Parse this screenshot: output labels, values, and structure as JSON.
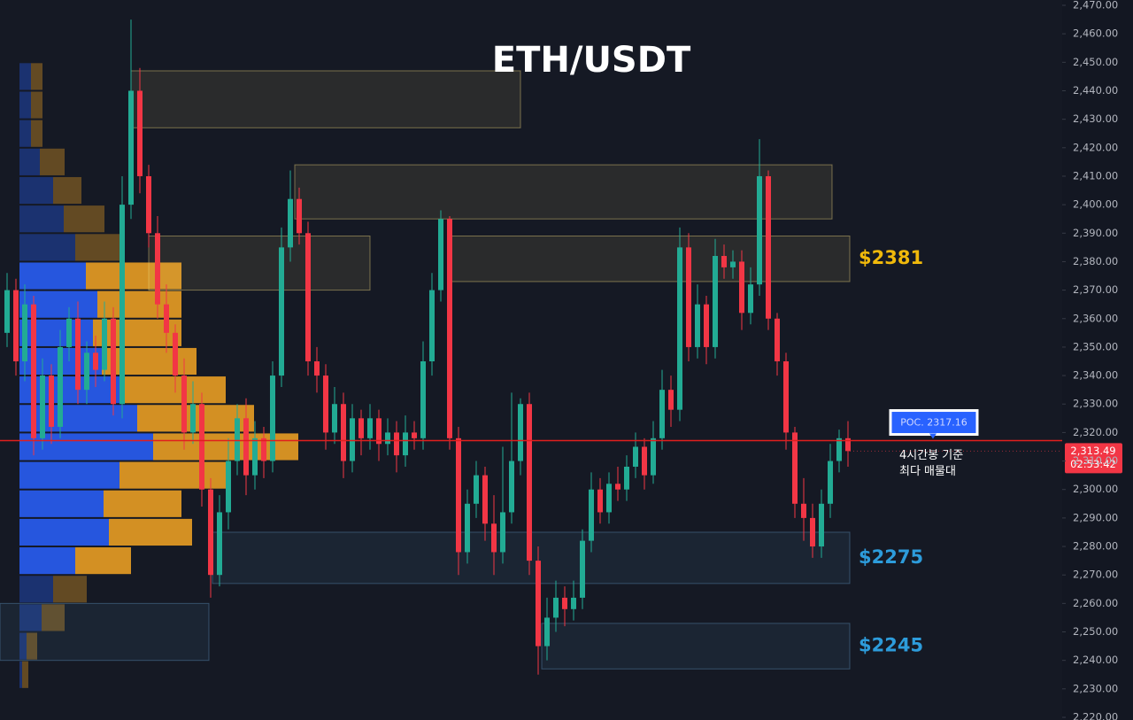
{
  "chart_data": {
    "type": "candlestick",
    "title": "ETH/USDT",
    "ylim": [
      2220,
      2470
    ],
    "yticks": [
      {
        "value": 2220,
        "label": "2,220.00"
      },
      {
        "value": 2230,
        "label": "2,230.00"
      },
      {
        "value": 2240,
        "label": "2,240.00"
      },
      {
        "value": 2250,
        "label": "2,250.00"
      },
      {
        "value": 2260,
        "label": "2,260.00"
      },
      {
        "value": 2270,
        "label": "2,270.00"
      },
      {
        "value": 2280,
        "label": "2,280.00"
      },
      {
        "value": 2290,
        "label": "2,290.00"
      },
      {
        "value": 2300,
        "label": "2,300.00"
      },
      {
        "value": 2310,
        "label": "2,310.00"
      },
      {
        "value": 2320,
        "label": "2,320.00"
      },
      {
        "value": 2330,
        "label": "2,330.00"
      },
      {
        "value": 2340,
        "label": "2,340.00"
      },
      {
        "value": 2350,
        "label": "2,350.00"
      },
      {
        "value": 2360,
        "label": "2,360.00"
      },
      {
        "value": 2370,
        "label": "2,370.00"
      },
      {
        "value": 2380,
        "label": "2,380.00"
      },
      {
        "value": 2390,
        "label": "2,390.00"
      },
      {
        "value": 2400,
        "label": "2,400.00"
      },
      {
        "value": 2410,
        "label": "2,410.00"
      },
      {
        "value": 2420,
        "label": "2,420.00"
      },
      {
        "value": 2430,
        "label": "2,430.00"
      },
      {
        "value": 2440,
        "label": "2,440.00"
      },
      {
        "value": 2450,
        "label": "2,450.00"
      },
      {
        "value": 2460,
        "label": "2,460.00"
      },
      {
        "value": 2470,
        "label": "2,470.00"
      }
    ],
    "up_color": "#22ab94",
    "down_color": "#f23645",
    "open": [
      2355,
      2370,
      2345,
      2365,
      2318,
      2340,
      2322,
      2350,
      2360,
      2335,
      2348,
      2342,
      2360,
      2330,
      2400,
      2440,
      2410,
      2390,
      2365,
      2355,
      2340,
      2320,
      2330,
      2300,
      2270,
      2292,
      2310,
      2325,
      2305,
      2318,
      2310,
      2340,
      2385,
      2402,
      2390,
      2345,
      2340,
      2320,
      2330,
      2310,
      2325,
      2318,
      2325,
      2316,
      2320,
      2312,
      2320,
      2318,
      2345,
      2370,
      2395,
      2318,
      2278,
      2295,
      2305,
      2288,
      2278,
      2292,
      2310,
      2330,
      2275,
      2245,
      2255,
      2262,
      2258,
      2262,
      2282,
      2300,
      2292,
      2302,
      2300,
      2308,
      2315,
      2305,
      2318,
      2335,
      2328,
      2385,
      2350,
      2365,
      2350,
      2382,
      2378,
      2380,
      2362,
      2372,
      2410,
      2360,
      2345,
      2320,
      2295,
      2290,
      2280,
      2295,
      2310,
      2318
    ],
    "high": [
      2376,
      2374,
      2372,
      2368,
      2346,
      2344,
      2356,
      2364,
      2366,
      2352,
      2354,
      2366,
      2364,
      2410,
      2465,
      2448,
      2414,
      2396,
      2372,
      2358,
      2346,
      2338,
      2334,
      2304,
      2298,
      2318,
      2330,
      2332,
      2324,
      2322,
      2345,
      2392,
      2412,
      2406,
      2394,
      2350,
      2344,
      2336,
      2334,
      2330,
      2328,
      2330,
      2328,
      2325,
      2324,
      2326,
      2324,
      2352,
      2376,
      2398,
      2396,
      2322,
      2300,
      2310,
      2308,
      2298,
      2315,
      2334,
      2332,
      2334,
      2280,
      2262,
      2268,
      2266,
      2268,
      2286,
      2306,
      2304,
      2306,
      2308,
      2312,
      2320,
      2318,
      2324,
      2342,
      2340,
      2392,
      2390,
      2372,
      2368,
      2388,
      2386,
      2384,
      2384,
      2378,
      2423,
      2412,
      2362,
      2348,
      2322,
      2304,
      2295,
      2300,
      2316,
      2321,
      2324
    ],
    "low": [
      2350,
      2340,
      2338,
      2312,
      2314,
      2316,
      2318,
      2345,
      2330,
      2330,
      2336,
      2338,
      2326,
      2325,
      2395,
      2404,
      2385,
      2360,
      2348,
      2334,
      2314,
      2316,
      2294,
      2262,
      2266,
      2286,
      2305,
      2298,
      2300,
      2304,
      2306,
      2336,
      2380,
      2386,
      2340,
      2334,
      2314,
      2316,
      2304,
      2306,
      2312,
      2314,
      2310,
      2312,
      2306,
      2308,
      2314,
      2314,
      2340,
      2366,
      2314,
      2270,
      2274,
      2290,
      2282,
      2270,
      2274,
      2288,
      2305,
      2270,
      2235,
      2240,
      2250,
      2252,
      2254,
      2258,
      2278,
      2288,
      2288,
      2296,
      2296,
      2304,
      2300,
      2302,
      2314,
      2322,
      2324,
      2345,
      2346,
      2344,
      2346,
      2374,
      2374,
      2356,
      2358,
      2368,
      2356,
      2340,
      2314,
      2290,
      2282,
      2276,
      2276,
      2290,
      2306,
      2308
    ],
    "close": [
      2370,
      2345,
      2365,
      2318,
      2340,
      2322,
      2350,
      2360,
      2335,
      2348,
      2342,
      2360,
      2330,
      2400,
      2440,
      2410,
      2390,
      2365,
      2355,
      2340,
      2320,
      2330,
      2300,
      2270,
      2292,
      2310,
      2325,
      2305,
      2318,
      2310,
      2340,
      2385,
      2402,
      2390,
      2345,
      2340,
      2320,
      2330,
      2310,
      2325,
      2318,
      2325,
      2316,
      2320,
      2312,
      2320,
      2318,
      2345,
      2370,
      2395,
      2318,
      2278,
      2295,
      2305,
      2288,
      2278,
      2292,
      2310,
      2330,
      2275,
      2245,
      2255,
      2262,
      2258,
      2262,
      2282,
      2300,
      2292,
      2302,
      2300,
      2308,
      2315,
      2305,
      2318,
      2335,
      2328,
      2385,
      2350,
      2365,
      2350,
      2382,
      2378,
      2380,
      2362,
      2372,
      2410,
      2360,
      2345,
      2320,
      2295,
      2290,
      2280,
      2295,
      2310,
      2318,
      2313.49
    ],
    "volume_profile": {
      "levels": [
        2230,
        2240,
        2250,
        2260,
        2270,
        2280,
        2290,
        2300,
        2310,
        2320,
        2330,
        2340,
        2350,
        2360,
        2370,
        2380,
        2390,
        2400,
        2410,
        2420,
        2430,
        2440
      ],
      "buy": [
        3,
        8,
        25,
        38,
        63,
        101,
        95,
        113,
        151,
        133,
        113,
        93,
        83,
        88,
        75,
        63,
        50,
        38,
        23,
        13,
        13,
        13
      ],
      "sell": [
        7,
        12,
        26,
        38,
        63,
        94,
        88,
        120,
        164,
        132,
        120,
        107,
        100,
        95,
        108,
        55,
        46,
        32,
        28,
        13,
        13,
        13
      ],
      "value_area": [
        2270,
        2380
      ],
      "buy_color": "#2962ff",
      "sell_color": "#f5a623"
    },
    "zones": [
      {
        "low": 2427,
        "high": 2447,
        "start": 14,
        "end": 58,
        "color": "#e8d27a"
      },
      {
        "low": 2395,
        "high": 2414,
        "start": 32.5,
        "end": 93.2,
        "color": "#e8d27a"
      },
      {
        "low": 2370,
        "high": 2389,
        "start": 16,
        "end": 41,
        "color": "#e8d27a"
      },
      {
        "low": 2373,
        "high": 2389,
        "start": 50,
        "end": 95.2,
        "color": "#e8d27a",
        "label": "$2381",
        "label_color": "#f0b90b"
      },
      {
        "low": 2267,
        "high": 2285,
        "start": 23.2,
        "end": 95.2,
        "color": "#5a8fb8",
        "label": "$2275",
        "label_color": "#2d9cdb"
      },
      {
        "low": 2237,
        "high": 2253,
        "start": 60.4,
        "end": 95.2,
        "color": "#5a8fb8",
        "label": "$2245",
        "label_color": "#2d9cdb"
      },
      {
        "low": 2240,
        "high": 2260,
        "start": -0.8,
        "end": 22.8,
        "color": "#5a8fb8"
      }
    ],
    "poc": {
      "value": 2317.16,
      "label": "POC. 2317.16",
      "note": [
        "4시간봉 기준",
        "최다 매물대"
      ],
      "color": "#e01e1e"
    },
    "last_price": {
      "value": 2313.49,
      "label": "2,313.49",
      "countdown": "02:53:42"
    }
  }
}
